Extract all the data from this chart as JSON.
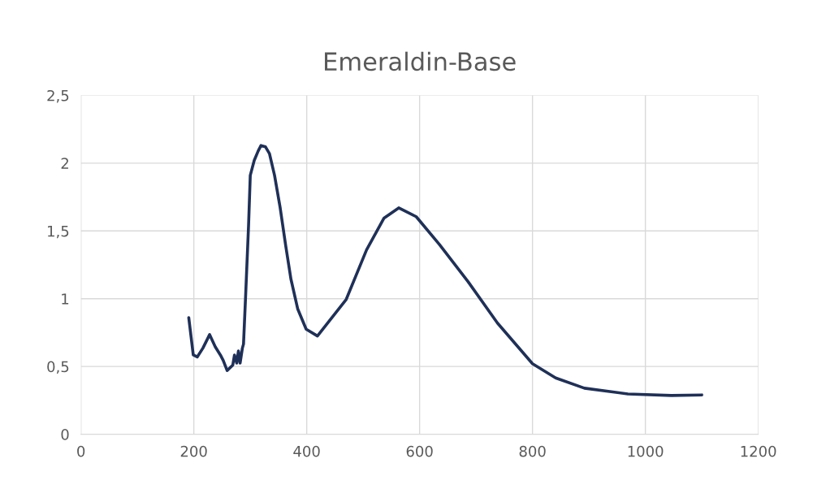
{
  "chart_data": {
    "type": "line",
    "title": "Emeraldin-Base",
    "xlim": [
      0,
      1200
    ],
    "xticks": [
      0,
      200,
      400,
      600,
      800,
      1000,
      1200
    ],
    "ylim": [
      0,
      2.5
    ],
    "yticks": [
      0,
      {
        "value": 0.5,
        "label": "0,5"
      },
      1,
      {
        "value": 1.5,
        "label": "1,5"
      },
      2,
      {
        "value": 2.5,
        "label": "2,5"
      }
    ],
    "grid": true,
    "legend": false,
    "marker": "none",
    "line_style": "solid",
    "series": [
      {
        "color": "#1f3058",
        "x": [
          191,
          199,
          206,
          216,
          228,
          238,
          247,
          252,
          259,
          269,
          272,
          276,
          279,
          282,
          286,
          288,
          292,
          297,
          300,
          307,
          314,
          319,
          327,
          334,
          343,
          353,
          363,
          372,
          384,
          399,
          419,
          470,
          506,
          537,
          563,
          594,
          635,
          686,
          738,
          800,
          841,
          892,
          969,
          1046,
          1100
        ],
        "values": [
          0.86,
          0.585,
          0.57,
          0.635,
          0.735,
          0.645,
          0.585,
          0.545,
          0.47,
          0.51,
          0.585,
          0.525,
          0.615,
          0.525,
          0.635,
          0.665,
          1.045,
          1.545,
          1.91,
          2.02,
          2.09,
          2.13,
          2.12,
          2.07,
          1.91,
          1.67,
          1.385,
          1.145,
          0.925,
          0.775,
          0.725,
          0.995,
          1.36,
          1.595,
          1.67,
          1.605,
          1.4,
          1.125,
          0.82,
          0.52,
          0.415,
          0.34,
          0.297,
          0.286,
          0.29
        ]
      }
    ]
  }
}
